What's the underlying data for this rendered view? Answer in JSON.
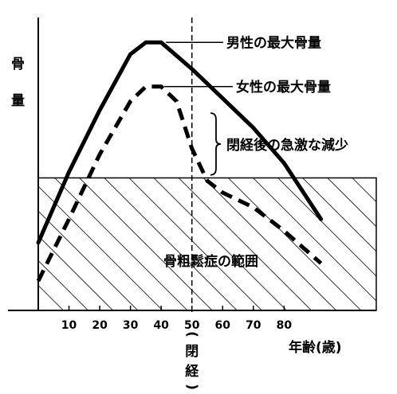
{
  "chart_data": {
    "type": "line",
    "ylabel": "骨量",
    "xlabel": "年齢(歳)",
    "x_ticks": [
      10,
      20,
      30,
      40,
      50,
      60,
      70,
      80
    ],
    "xlim": [
      0,
      110
    ],
    "ylim": [
      0,
      100
    ],
    "menopause": {
      "x": 50,
      "label": "(閉経)"
    },
    "threshold_y": 45,
    "threshold_label": "骨粗鬆症の範囲",
    "series": [
      {
        "name": "男性の最大骨量",
        "style": "solid",
        "points": [
          [
            0,
            23
          ],
          [
            10,
            47
          ],
          [
            20,
            68
          ],
          [
            30,
            87
          ],
          [
            35,
            91
          ],
          [
            40,
            91
          ],
          [
            50,
            82
          ],
          [
            60,
            72
          ],
          [
            70,
            62
          ],
          [
            80,
            50
          ],
          [
            92,
            31
          ]
        ]
      },
      {
        "name": "女性の最大骨量",
        "style": "dashed",
        "points": [
          [
            0,
            10
          ],
          [
            10,
            31
          ],
          [
            20,
            53
          ],
          [
            30,
            71
          ],
          [
            35,
            76
          ],
          [
            40,
            76
          ],
          [
            45,
            71
          ],
          [
            50,
            55
          ],
          [
            55,
            44
          ],
          [
            60,
            40
          ],
          [
            70,
            35
          ],
          [
            80,
            27
          ],
          [
            92,
            16
          ]
        ]
      }
    ],
    "annotations": [
      {
        "text": "男性の最大骨量",
        "target_x": 40,
        "target_y": 91
      },
      {
        "text": "女性の最大骨量",
        "target_x": 40,
        "target_y": 76
      },
      {
        "text": "閉経後の急激な減少",
        "range_x": 55,
        "range_y": [
          46,
          67
        ]
      }
    ],
    "grid": false,
    "hatched_region": "below threshold"
  }
}
